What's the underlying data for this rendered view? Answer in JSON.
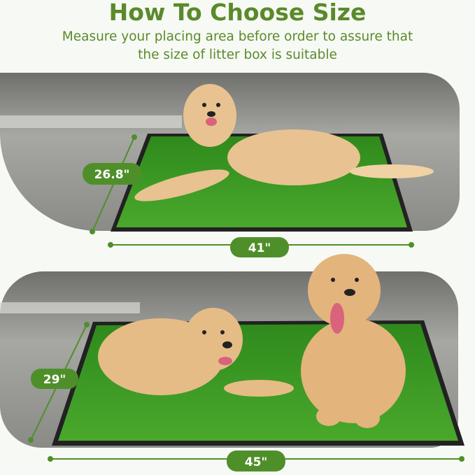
{
  "header": {
    "title": "How To Choose Size",
    "subtitle_line1": "Measure your placing area before order to assure that",
    "subtitle_line2": "the size of litter box is suitable"
  },
  "small_size": {
    "height_label": "26.8\"",
    "width_label": "41\""
  },
  "large_size": {
    "height_label": "29\"",
    "width_label": "45\""
  },
  "colors": {
    "accent": "#4f8f2a",
    "grass": "#3f9a24",
    "frame": "#222222",
    "floor": "#8f8f8c",
    "dog": "#e6bf8a"
  }
}
